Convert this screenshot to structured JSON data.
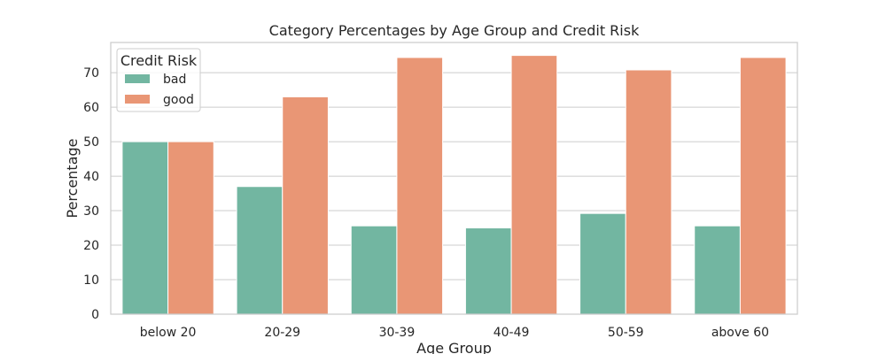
{
  "chart_data": {
    "type": "bar",
    "title": "Category Percentages by Age Group and Credit Risk",
    "xlabel": "Age Group",
    "ylabel": "Percentage",
    "categories": [
      "below 20",
      "20-29",
      "30-39",
      "40-49",
      "50-59",
      "above 60"
    ],
    "series": [
      {
        "name": "bad",
        "color": "#72b6a1",
        "values": [
          50.0,
          37.0,
          25.6,
          25.0,
          29.2,
          25.6
        ]
      },
      {
        "name": "good",
        "color": "#e99675",
        "values": [
          50.0,
          63.0,
          74.4,
          75.0,
          70.8,
          74.4
        ]
      }
    ],
    "ylim": [
      0,
      78.75
    ],
    "yticks": [
      0,
      10,
      20,
      30,
      40,
      50,
      60,
      70
    ],
    "grid": true,
    "legend": {
      "title": "Credit Risk",
      "placement": "top-left"
    }
  }
}
